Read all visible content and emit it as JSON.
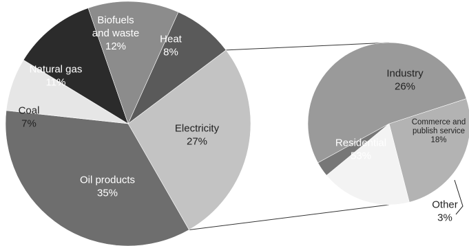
{
  "chart_data": [
    {
      "type": "pie",
      "series": [
        {
          "name": "Electricity",
          "value": 27,
          "display": "27%",
          "color": "#c3c3c3",
          "text_color": "#222222"
        },
        {
          "name": "Oil products",
          "value": 35,
          "display": "35%",
          "color": "#6e6e6e",
          "text_color": "#ffffff"
        },
        {
          "name": "Coal",
          "value": 7,
          "display": "7%",
          "color": "#e6e6e6",
          "text_color": "#222222"
        },
        {
          "name": "Natural gas",
          "value": 11,
          "display": "11%",
          "color": "#2b2b2b",
          "text_color": "#ffffff"
        },
        {
          "name": "Biofuels and waste",
          "value": 12,
          "display": "12%",
          "color": "#8c8c8c",
          "text_color": "#ffffff"
        },
        {
          "name": "Heat",
          "value": 8,
          "display": "8%",
          "color": "#5a5a5a",
          "text_color": "#ffffff"
        }
      ]
    },
    {
      "type": "pie",
      "breakdown_of": "Electricity",
      "series": [
        {
          "name": "Industry",
          "value": 26,
          "display": "26%",
          "color": "#b3b3b3",
          "text_color": "#222222"
        },
        {
          "name": "Commerce and publish service",
          "value": 18,
          "display": "18%",
          "color": "#f3f3f3",
          "text_color": "#222222"
        },
        {
          "name": "Other",
          "value": 3,
          "display": "3%",
          "color": "#777777",
          "text_color": "#222222"
        },
        {
          "name": "Residential",
          "value": 53,
          "display": "53%",
          "color": "#9a9a9a",
          "text_color": "#ffffff"
        }
      ]
    }
  ]
}
